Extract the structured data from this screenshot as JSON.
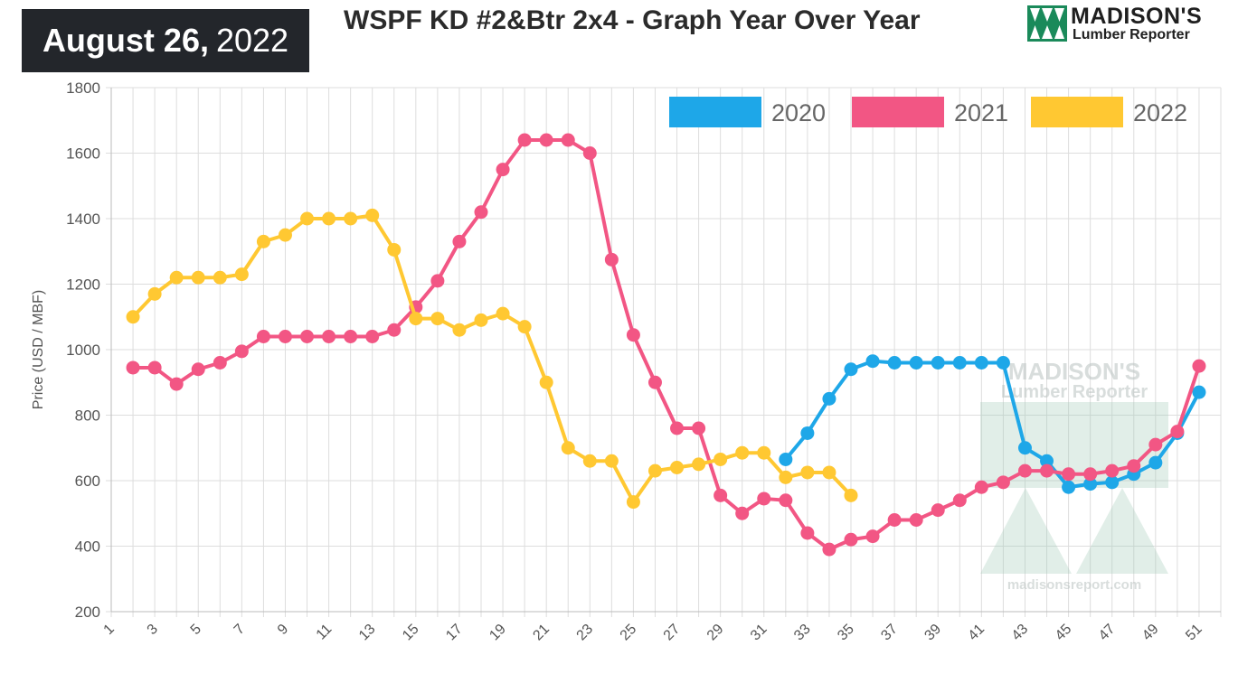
{
  "header": {
    "date_bold": "August 26,",
    "date_year": "2022",
    "title": "WSPF KD #2&Btr 2x4 - Graph Year Over Year"
  },
  "logo": {
    "line1": "MADISON'S",
    "line2": "Lumber Reporter",
    "colors": {
      "green": "#1a8a5a",
      "dark": "#1f1f1f"
    }
  },
  "watermark": {
    "line1": "MADISON'S",
    "line2": "Lumber Reporter",
    "url": "madisonsreport.com"
  },
  "chart_data": {
    "type": "line",
    "ylabel": "Price (USD / MBF)",
    "xlabel": "",
    "ylim": [
      200,
      1800
    ],
    "yticks": [
      200,
      400,
      600,
      800,
      1000,
      1200,
      1400,
      1600,
      1800
    ],
    "xlim": [
      1,
      52
    ],
    "xticks": [
      1,
      3,
      5,
      7,
      9,
      11,
      13,
      15,
      17,
      19,
      21,
      23,
      25,
      27,
      29,
      31,
      33,
      35,
      37,
      39,
      41,
      43,
      45,
      47,
      49,
      51
    ],
    "grid": true,
    "legend_position": "top-right",
    "series": [
      {
        "name": "2020",
        "color": "#1ea7e8",
        "x": [
          32,
          33,
          34,
          35,
          36,
          37,
          38,
          39,
          40,
          41,
          42,
          43,
          44,
          45,
          46,
          47,
          48,
          49,
          50,
          51
        ],
        "values": [
          665,
          745,
          850,
          940,
          965,
          960,
          960,
          960,
          960,
          960,
          960,
          700,
          660,
          580,
          590,
          595,
          620,
          655,
          745,
          870
        ]
      },
      {
        "name": "2021",
        "color": "#f25684",
        "x": [
          2,
          3,
          4,
          5,
          6,
          7,
          8,
          9,
          10,
          11,
          12,
          13,
          14,
          15,
          16,
          17,
          18,
          19,
          20,
          21,
          22,
          23,
          24,
          25,
          26,
          27,
          28,
          29,
          30,
          31,
          32,
          33,
          34,
          35,
          36,
          37,
          38,
          39,
          40,
          41,
          42,
          43,
          44,
          45,
          46,
          47,
          48,
          49,
          50,
          51
        ],
        "values": [
          945,
          945,
          895,
          940,
          960,
          995,
          1040,
          1040,
          1040,
          1040,
          1040,
          1040,
          1060,
          1130,
          1210,
          1330,
          1420,
          1550,
          1640,
          1640,
          1640,
          1600,
          1275,
          1045,
          900,
          760,
          760,
          555,
          500,
          545,
          540,
          440,
          390,
          420,
          430,
          480,
          480,
          510,
          540,
          580,
          595,
          630,
          630,
          620,
          620,
          630,
          645,
          710,
          750,
          950
        ]
      },
      {
        "name": "2022",
        "color": "#ffc832",
        "x": [
          2,
          3,
          4,
          5,
          6,
          7,
          8,
          9,
          10,
          11,
          12,
          13,
          14,
          15,
          16,
          17,
          18,
          19,
          20,
          21,
          22,
          23,
          24,
          25,
          26,
          27,
          28,
          29,
          30,
          31,
          32,
          33,
          34,
          35
        ],
        "values": [
          1100,
          1170,
          1220,
          1220,
          1220,
          1230,
          1330,
          1350,
          1400,
          1400,
          1400,
          1410,
          1305,
          1095,
          1095,
          1060,
          1090,
          1110,
          1070,
          900,
          700,
          660,
          660,
          535,
          630,
          640,
          650,
          665,
          685,
          685,
          610,
          625,
          625,
          555
        ]
      }
    ]
  }
}
